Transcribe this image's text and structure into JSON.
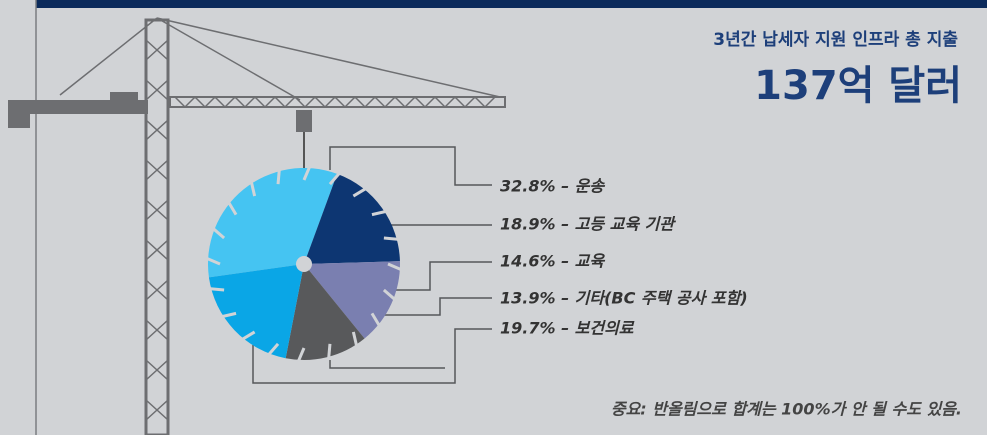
{
  "chart_data": {
    "type": "pie",
    "title": "3년간 납세자 지원 인프라 총 지출",
    "subtitle": "137억 달러",
    "values": [
      32.8,
      18.9,
      14.6,
      13.9,
      19.7
    ],
    "value_labels": [
      "32.8% – 운송",
      "18.9% – 고등 교육 기관",
      "14.6% – 교육",
      "13.9% – 기타(BC 주택 공사 포함)",
      "19.7% – 보건의료"
    ],
    "colors": [
      "#45c4f2",
      "#0d3672",
      "#7a7fb0",
      "#58595b",
      "#0aa6e6"
    ],
    "note": "중요: 반올림으로 합계는 100%가 안 될 수도 있음."
  }
}
